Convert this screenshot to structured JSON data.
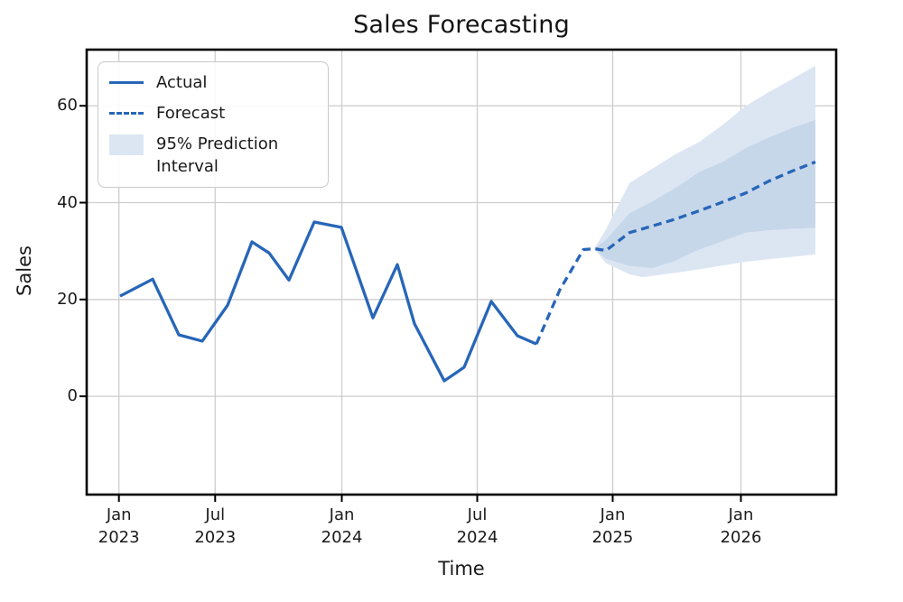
{
  "figure": {
    "title": "Sales Forecasting",
    "x_axis_label": "Time",
    "y_axis_label": "Sales",
    "legend": {
      "actual_label": "Actual",
      "forecast_label": "Forecast",
      "interval_label": "95% Prediction Interval"
    }
  },
  "colors": {
    "line_blue": "#2766b8",
    "outer_band": "#dce6f3",
    "inner_band": "#c7d7ea",
    "grid": "#cdcdcd",
    "frame": "#000000",
    "text": "#1a1a1a",
    "background": "#ffffff"
  },
  "chart_data": {
    "type": "line",
    "title": "Sales Forecasting",
    "xlabel": "Time",
    "ylabel": "Sales",
    "ylim": [
      -20.3,
      71.6
    ],
    "grid": true,
    "legend_position": "upper left",
    "x_axis_note": "datetime axis rendered with non-uniform spacing; x stored as fraction (0-1) of plot width",
    "x_ticks": [
      {
        "frac": 0.043,
        "line1": "Jan",
        "line2": "2023"
      },
      {
        "frac": 0.1714,
        "line1": "Jul",
        "line2": "2023"
      },
      {
        "frac": 0.3404,
        "line1": "Jan",
        "line2": "2024"
      },
      {
        "frac": 0.5211,
        "line1": "Jul",
        "line2": "2024"
      },
      {
        "frac": 0.7018,
        "line1": "Jan",
        "line2": "2025"
      },
      {
        "frac": 0.8729,
        "line1": "Jan",
        "line2": "2026"
      }
    ],
    "y_ticks": [
      0,
      20,
      40,
      60
    ],
    "series": [
      {
        "name": "Actual",
        "style": "solid",
        "x": [
          0.0446,
          0.088,
          0.1229,
          0.1542,
          0.188,
          0.2205,
          0.2434,
          0.2699,
          0.3036,
          0.3398,
          0.3819,
          0.4145,
          0.4373,
          0.4771,
          0.5036,
          0.5398,
          0.5747,
          0.6
        ],
        "y": [
          20.7,
          24.2,
          12.7,
          11.4,
          18.8,
          31.9,
          29.6,
          24.0,
          36.0,
          34.9,
          16.2,
          27.2,
          15.0,
          3.2,
          6.0,
          19.6,
          12.5,
          10.8
        ]
      },
      {
        "name": "Forecast",
        "style": "dashed",
        "x": [
          0.6,
          0.6313,
          0.6627,
          0.6771,
          0.6928,
          0.7241,
          0.7554,
          0.7855,
          0.8169,
          0.8482,
          0.8795,
          0.9096,
          0.941,
          0.9723
        ],
        "y": [
          10.8,
          22.0,
          30.3,
          30.5,
          30.1,
          33.8,
          35.2,
          36.6,
          38.3,
          40.1,
          42.0,
          44.4,
          46.5,
          48.4
        ]
      }
    ],
    "bands": [
      {
        "name": "95% Prediction Interval (outer)",
        "x": [
          0.6771,
          0.6928,
          0.7241,
          0.7422,
          0.7855,
          0.8169,
          0.8482,
          0.8795,
          0.9096,
          0.941,
          0.9723
        ],
        "lower": [
          30.5,
          27.5,
          25.2,
          24.6,
          25.5,
          26.2,
          27.0,
          27.8,
          28.3,
          28.8,
          29.3
        ],
        "upper": [
          30.5,
          34.5,
          44.0,
          45.8,
          50.0,
          52.5,
          56.0,
          60.0,
          62.8,
          65.5,
          68.3
        ]
      },
      {
        "name": "inner interval",
        "x": [
          0.6771,
          0.6928,
          0.7241,
          0.7554,
          0.7855,
          0.8169,
          0.8482,
          0.8795,
          0.9096,
          0.941,
          0.9723
        ],
        "lower": [
          30.5,
          28.4,
          26.9,
          26.5,
          28.0,
          30.3,
          32.0,
          33.8,
          34.3,
          34.6,
          34.8
        ],
        "upper": [
          30.5,
          32.3,
          37.8,
          40.3,
          43.0,
          46.3,
          48.4,
          51.3,
          53.4,
          55.4,
          57.1
        ]
      }
    ]
  }
}
